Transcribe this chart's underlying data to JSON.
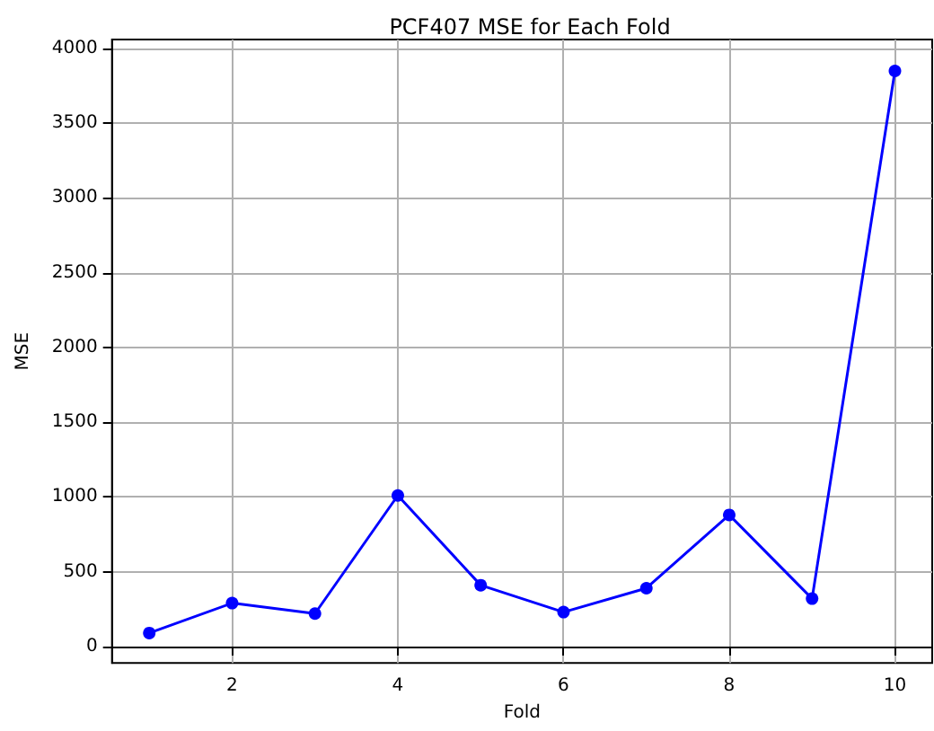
{
  "chart_data": {
    "type": "line",
    "title": "PCF407 MSE for Each Fold",
    "xlabel": "Fold",
    "ylabel": "MSE",
    "x": [
      1,
      2,
      3,
      4,
      5,
      6,
      7,
      8,
      9,
      10
    ],
    "series": [
      {
        "color": "#0000ff",
        "values": [
          90,
          290,
          220,
          1010,
          410,
          230,
          390,
          880,
          320,
          3850
        ]
      }
    ],
    "xlim": [
      0.55,
      10.45
    ],
    "xticks": [
      2,
      4,
      6,
      8,
      10
    ],
    "ylim": [
      -110,
      4060
    ],
    "yticks": [
      0,
      500,
      1000,
      1500,
      2000,
      2500,
      3000,
      3500,
      4000
    ],
    "grid": true,
    "marker": "circle",
    "line_style": "solid"
  }
}
